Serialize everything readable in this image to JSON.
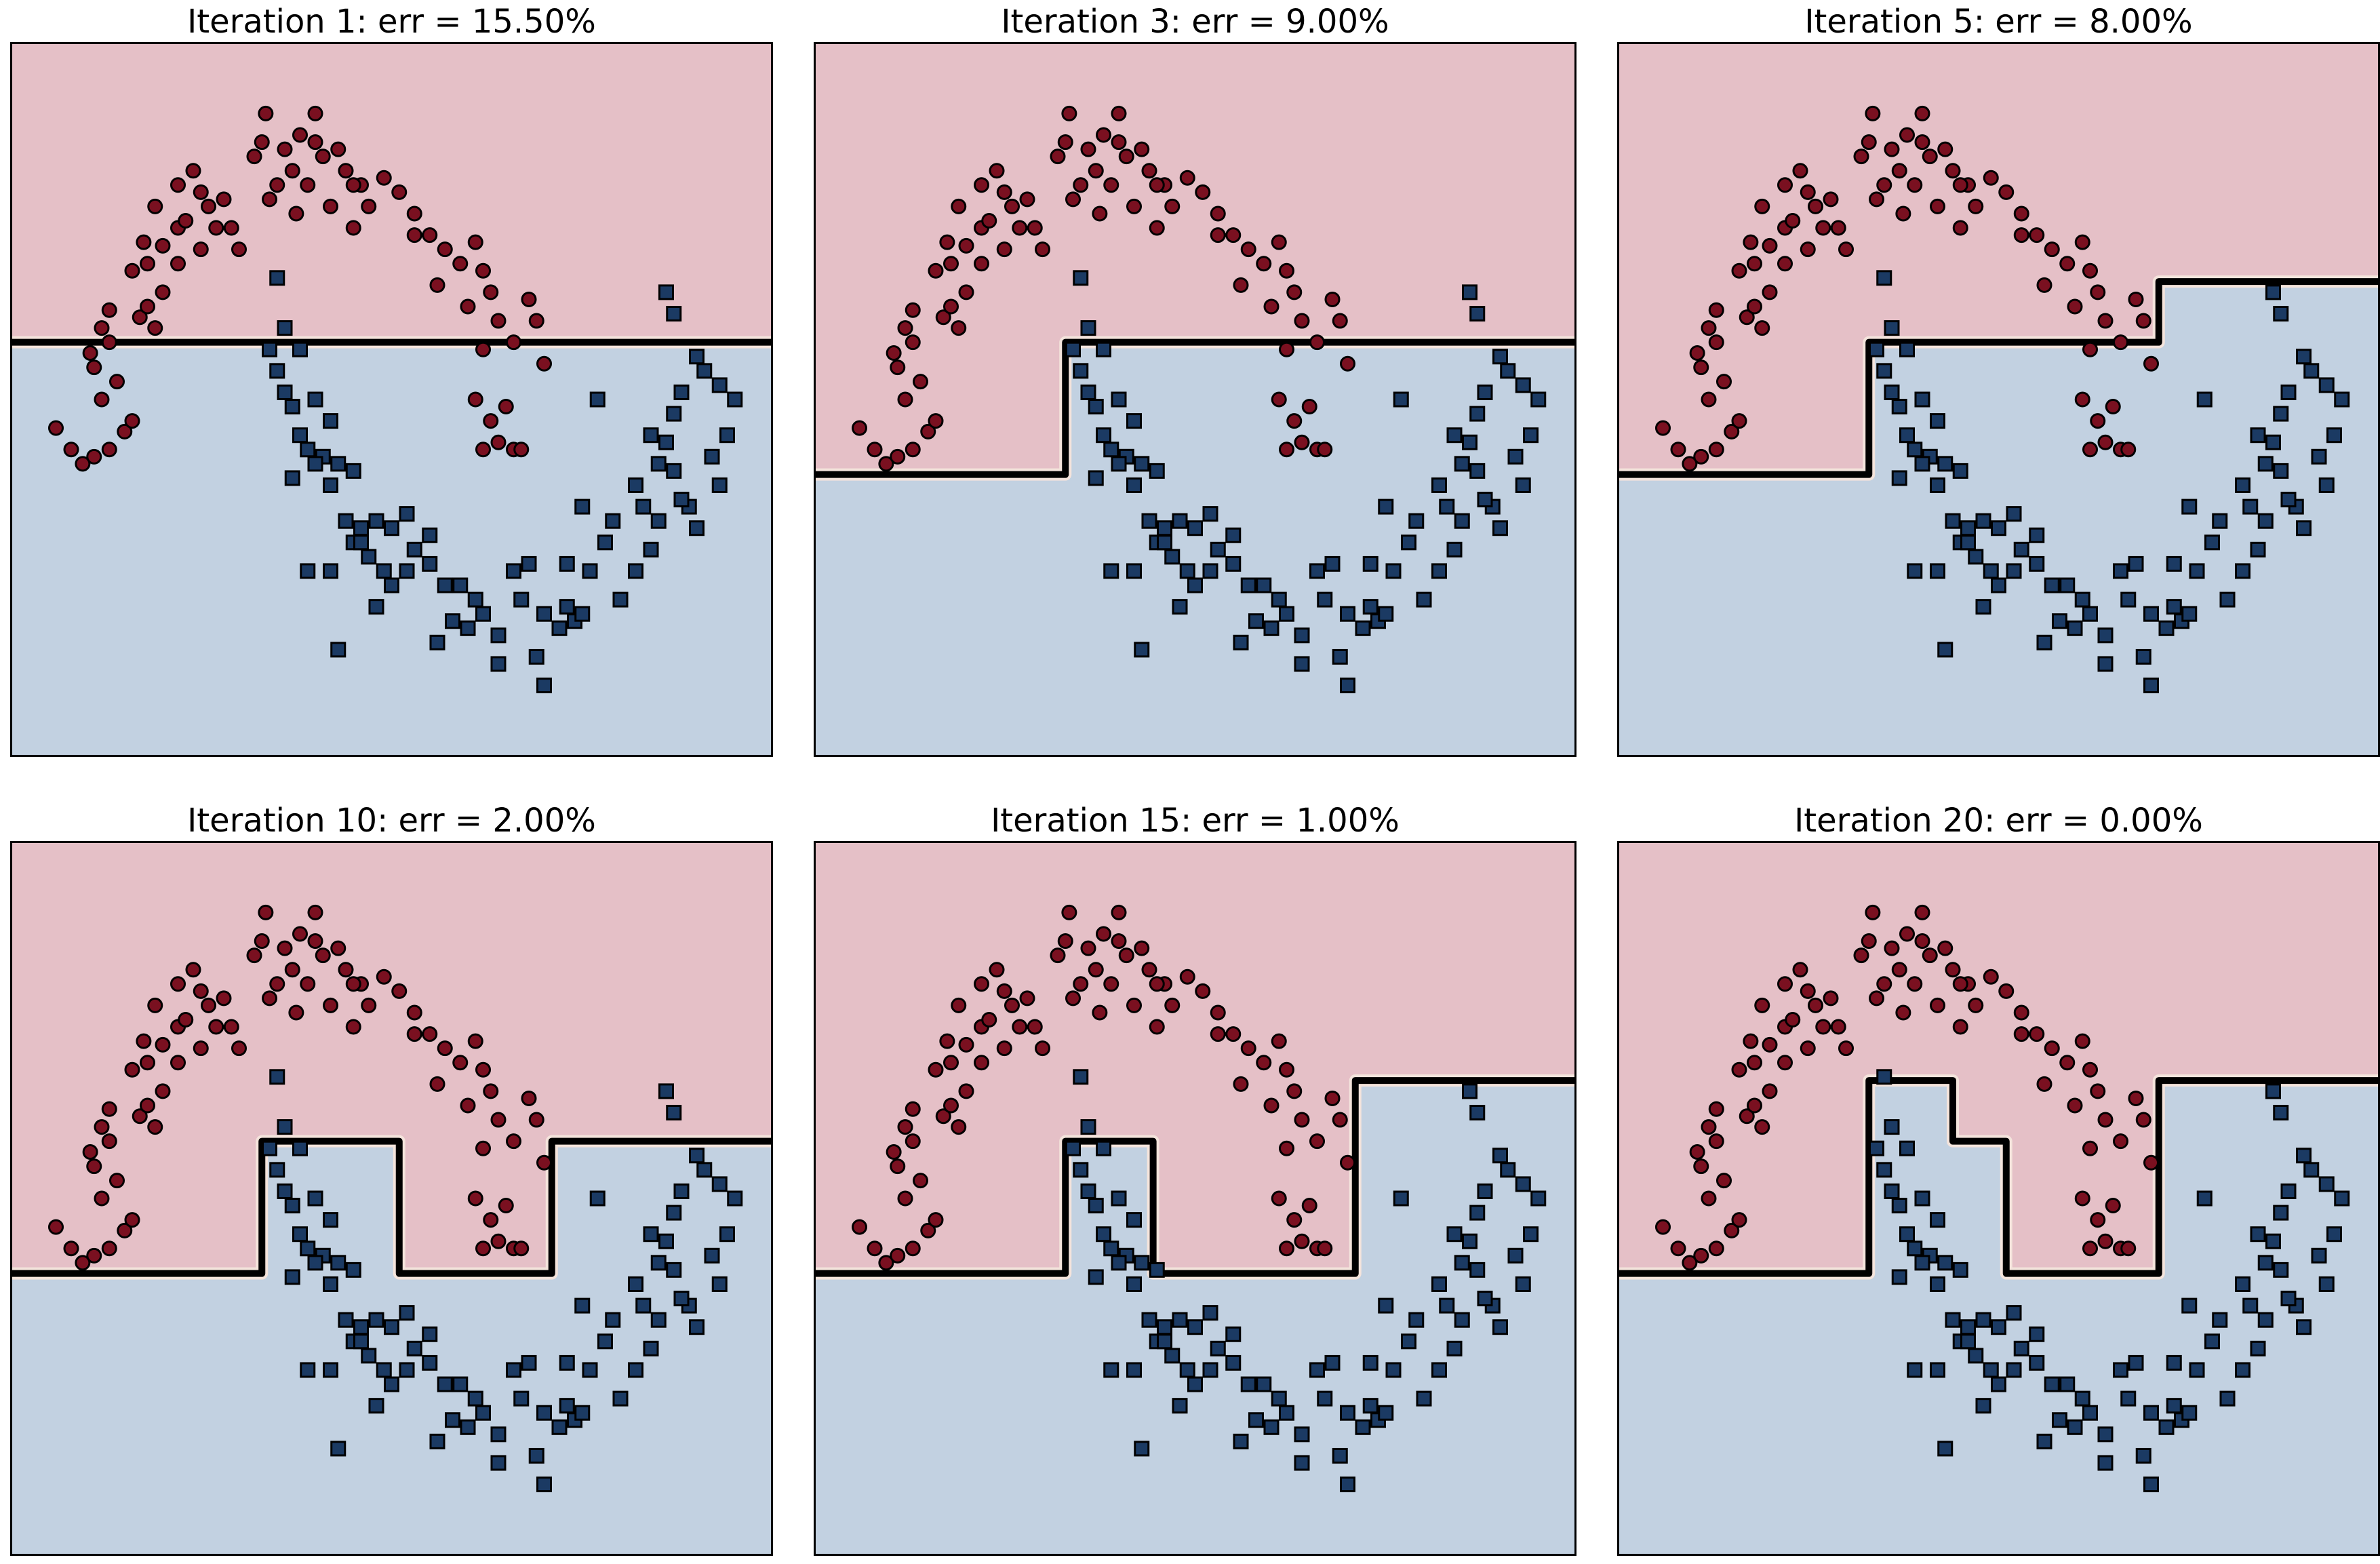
{
  "colors": {
    "region_red": "#e5c0c7",
    "region_blue": "#c2d1e1",
    "point_red": "#7a1020",
    "point_blue": "#1b3a63",
    "boundary": "#000000"
  },
  "chart_data": [
    {
      "type": "scatter",
      "title": "Iteration 1: err = 15.50%",
      "xlim": [
        0,
        1
      ],
      "ylim": [
        0,
        1
      ],
      "steps": [
        [
          0.0,
          0.58
        ],
        [
          1.0,
          0.58
        ]
      ]
    },
    {
      "type": "scatter",
      "title": "Iteration 3: err = 9.00%",
      "xlim": [
        0,
        1
      ],
      "ylim": [
        0,
        1
      ],
      "steps": [
        [
          0.0,
          0.395
        ],
        [
          0.33,
          0.395
        ],
        [
          0.33,
          0.58
        ],
        [
          1.0,
          0.58
        ]
      ]
    },
    {
      "type": "scatter",
      "title": "Iteration 5: err = 8.00%",
      "xlim": [
        0,
        1
      ],
      "ylim": [
        0,
        1
      ],
      "steps": [
        [
          0.0,
          0.395
        ],
        [
          0.33,
          0.395
        ],
        [
          0.33,
          0.58
        ],
        [
          0.71,
          0.58
        ],
        [
          0.71,
          0.665
        ],
        [
          1.0,
          0.665
        ]
      ]
    },
    {
      "type": "scatter",
      "title": "Iteration 10: err = 2.00%",
      "xlim": [
        0,
        1
      ],
      "ylim": [
        0,
        1
      ],
      "steps": [
        [
          0.0,
          0.395
        ],
        [
          0.33,
          0.395
        ],
        [
          0.33,
          0.58
        ],
        [
          0.51,
          0.58
        ],
        [
          0.51,
          0.395
        ],
        [
          0.71,
          0.395
        ],
        [
          0.71,
          0.58
        ],
        [
          1.0,
          0.58
        ]
      ]
    },
    {
      "type": "scatter",
      "title": "Iteration 15: err = 1.00%",
      "xlim": [
        0,
        1
      ],
      "ylim": [
        0,
        1
      ],
      "steps": [
        [
          0.0,
          0.395
        ],
        [
          0.33,
          0.395
        ],
        [
          0.33,
          0.58
        ],
        [
          0.445,
          0.58
        ],
        [
          0.445,
          0.395
        ],
        [
          0.71,
          0.395
        ],
        [
          0.71,
          0.665
        ],
        [
          1.0,
          0.665
        ]
      ]
    },
    {
      "type": "scatter",
      "title": "Iteration 20: err = 0.00%",
      "xlim": [
        0,
        1
      ],
      "ylim": [
        0,
        1
      ],
      "steps": [
        [
          0.0,
          0.395
        ],
        [
          0.33,
          0.395
        ],
        [
          0.33,
          0.665
        ],
        [
          0.44,
          0.665
        ],
        [
          0.44,
          0.58
        ],
        [
          0.51,
          0.58
        ],
        [
          0.51,
          0.395
        ],
        [
          0.71,
          0.395
        ],
        [
          0.71,
          0.665
        ],
        [
          1.0,
          0.665
        ]
      ]
    }
  ],
  "points": {
    "class_red": [
      [
        0.06,
        0.46
      ],
      [
        0.08,
        0.43
      ],
      [
        0.095,
        0.41
      ],
      [
        0.11,
        0.42
      ],
      [
        0.13,
        0.43
      ],
      [
        0.15,
        0.455
      ],
      [
        0.16,
        0.47
      ],
      [
        0.12,
        0.5
      ],
      [
        0.14,
        0.525
      ],
      [
        0.11,
        0.545
      ],
      [
        0.105,
        0.565
      ],
      [
        0.12,
        0.6
      ],
      [
        0.13,
        0.625
      ],
      [
        0.17,
        0.615
      ],
      [
        0.19,
        0.6
      ],
      [
        0.18,
        0.63
      ],
      [
        0.2,
        0.65
      ],
      [
        0.18,
        0.69
      ],
      [
        0.2,
        0.715
      ],
      [
        0.22,
        0.74
      ],
      [
        0.19,
        0.77
      ],
      [
        0.22,
        0.8
      ],
      [
        0.25,
        0.79
      ],
      [
        0.23,
        0.75
      ],
      [
        0.26,
        0.77
      ],
      [
        0.28,
        0.78
      ],
      [
        0.29,
        0.74
      ],
      [
        0.25,
        0.71
      ],
      [
        0.22,
        0.69
      ],
      [
        0.32,
        0.84
      ],
      [
        0.35,
        0.8
      ],
      [
        0.33,
        0.86
      ],
      [
        0.36,
        0.85
      ],
      [
        0.38,
        0.87
      ],
      [
        0.4,
        0.86
      ],
      [
        0.37,
        0.82
      ],
      [
        0.39,
        0.8
      ],
      [
        0.41,
        0.84
      ],
      [
        0.43,
        0.85
      ],
      [
        0.44,
        0.82
      ],
      [
        0.46,
        0.8
      ],
      [
        0.47,
        0.77
      ],
      [
        0.45,
        0.74
      ],
      [
        0.49,
        0.81
      ],
      [
        0.51,
        0.79
      ],
      [
        0.53,
        0.76
      ],
      [
        0.55,
        0.73
      ],
      [
        0.57,
        0.71
      ],
      [
        0.59,
        0.69
      ],
      [
        0.61,
        0.72
      ],
      [
        0.62,
        0.68
      ],
      [
        0.63,
        0.65
      ],
      [
        0.6,
        0.63
      ],
      [
        0.64,
        0.61
      ],
      [
        0.66,
        0.58
      ],
      [
        0.68,
        0.64
      ],
      [
        0.69,
        0.61
      ],
      [
        0.62,
        0.57
      ],
      [
        0.61,
        0.5
      ],
      [
        0.63,
        0.47
      ],
      [
        0.64,
        0.44
      ],
      [
        0.62,
        0.43
      ],
      [
        0.66,
        0.43
      ],
      [
        0.67,
        0.43
      ],
      [
        0.65,
        0.49
      ],
      [
        0.335,
        0.9
      ],
      [
        0.4,
        0.9
      ],
      [
        0.42,
        0.77
      ],
      [
        0.24,
        0.82
      ],
      [
        0.3,
        0.71
      ],
      [
        0.375,
        0.76
      ],
      [
        0.45,
        0.8
      ],
      [
        0.16,
        0.68
      ],
      [
        0.175,
        0.72
      ],
      [
        0.53,
        0.73
      ],
      [
        0.56,
        0.66
      ],
      [
        0.7,
        0.55
      ],
      [
        0.13,
        0.58
      ],
      [
        0.27,
        0.74
      ],
      [
        0.34,
        0.78
      ]
    ],
    "class_blue": [
      [
        0.35,
        0.67
      ],
      [
        0.36,
        0.6
      ],
      [
        0.34,
        0.57
      ],
      [
        0.38,
        0.57
      ],
      [
        0.35,
        0.54
      ],
      [
        0.36,
        0.51
      ],
      [
        0.37,
        0.49
      ],
      [
        0.38,
        0.45
      ],
      [
        0.39,
        0.43
      ],
      [
        0.4,
        0.5
      ],
      [
        0.42,
        0.47
      ],
      [
        0.41,
        0.42
      ],
      [
        0.43,
        0.41
      ],
      [
        0.45,
        0.4
      ],
      [
        0.42,
        0.38
      ],
      [
        0.44,
        0.33
      ],
      [
        0.45,
        0.3
      ],
      [
        0.46,
        0.32
      ],
      [
        0.48,
        0.33
      ],
      [
        0.5,
        0.32
      ],
      [
        0.52,
        0.34
      ],
      [
        0.53,
        0.29
      ],
      [
        0.55,
        0.27
      ],
      [
        0.52,
        0.26
      ],
      [
        0.5,
        0.24
      ],
      [
        0.48,
        0.21
      ],
      [
        0.49,
        0.26
      ],
      [
        0.47,
        0.28
      ],
      [
        0.43,
        0.15
      ],
      [
        0.39,
        0.26
      ],
      [
        0.42,
        0.26
      ],
      [
        0.57,
        0.24
      ],
      [
        0.59,
        0.24
      ],
      [
        0.61,
        0.22
      ],
      [
        0.58,
        0.19
      ],
      [
        0.6,
        0.18
      ],
      [
        0.62,
        0.2
      ],
      [
        0.56,
        0.16
      ],
      [
        0.64,
        0.17
      ],
      [
        0.66,
        0.26
      ],
      [
        0.67,
        0.22
      ],
      [
        0.7,
        0.2
      ],
      [
        0.72,
        0.18
      ],
      [
        0.74,
        0.19
      ],
      [
        0.75,
        0.2
      ],
      [
        0.73,
        0.21
      ],
      [
        0.69,
        0.14
      ],
      [
        0.7,
        0.1
      ],
      [
        0.64,
        0.13
      ],
      [
        0.68,
        0.27
      ],
      [
        0.73,
        0.27
      ],
      [
        0.76,
        0.26
      ],
      [
        0.78,
        0.3
      ],
      [
        0.8,
        0.22
      ],
      [
        0.82,
        0.26
      ],
      [
        0.84,
        0.29
      ],
      [
        0.85,
        0.33
      ],
      [
        0.83,
        0.35
      ],
      [
        0.82,
        0.38
      ],
      [
        0.85,
        0.41
      ],
      [
        0.84,
        0.45
      ],
      [
        0.86,
        0.44
      ],
      [
        0.87,
        0.48
      ],
      [
        0.88,
        0.51
      ],
      [
        0.87,
        0.4
      ],
      [
        0.89,
        0.35
      ],
      [
        0.9,
        0.32
      ],
      [
        0.92,
        0.42
      ],
      [
        0.94,
        0.45
      ],
      [
        0.93,
        0.38
      ],
      [
        0.9,
        0.56
      ],
      [
        0.91,
        0.54
      ],
      [
        0.95,
        0.5
      ],
      [
        0.93,
        0.52
      ],
      [
        0.77,
        0.5
      ],
      [
        0.86,
        0.65
      ],
      [
        0.87,
        0.62
      ],
      [
        0.4,
        0.41
      ],
      [
        0.37,
        0.39
      ],
      [
        0.46,
        0.3
      ],
      [
        0.55,
        0.31
      ],
      [
        0.75,
        0.35
      ],
      [
        0.79,
        0.33
      ],
      [
        0.88,
        0.36
      ]
    ]
  }
}
